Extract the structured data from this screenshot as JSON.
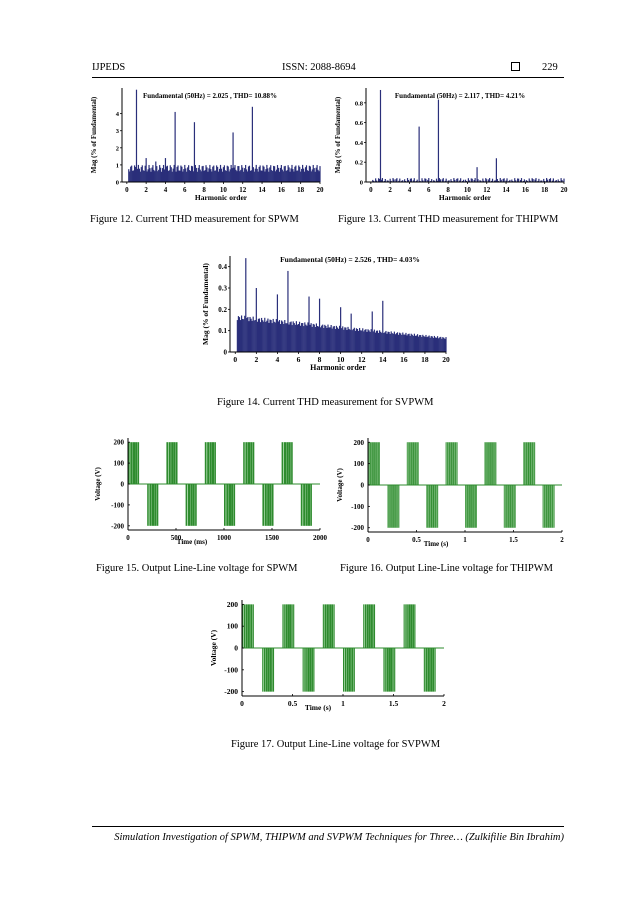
{
  "header": {
    "journal": "IJPEDS",
    "issn": "ISSN: 2088-8694",
    "page": "229"
  },
  "footer": {
    "running_title": "Simulation Investigation of SPWM, THIPWM and SVPWM Techniques for Three… (Zulkifilie Bin Ibrahim)"
  },
  "captions": {
    "fig12": "Figure 12. Current THD measurement for SPWM",
    "fig13": "Figure 13. Current THD measurement for THIPWM",
    "fig14": "Figure 14. Current THD measurement for SVPWM",
    "fig15": "Figure 15. Output Line-Line voltage for SPWM",
    "fig16": "Figure 16. Output Line-Line voltage for THIPWM",
    "fig17": "Figure 17. Output Line-Line voltage for SVPWM"
  },
  "colors": {
    "bar": "#2a2f7a",
    "wave": "#2e8b2e",
    "wave_light": "#9fd89f"
  },
  "chart_data": [
    {
      "id": "fig12",
      "type": "bar",
      "title": "Fundamental (50Hz) = 2.025 , THD= 10.88%",
      "xlabel": "Harmonic order",
      "ylabel": "Mag (% of Fundamental)",
      "xlim": [
        -0.5,
        20
      ],
      "ylim": [
        0,
        5.5
      ],
      "x_ticks": [
        "0",
        "2",
        "4",
        "6",
        "8",
        "10",
        "12",
        "14",
        "16",
        "18",
        "20"
      ],
      "y_ticks": [
        "0",
        "1",
        "2",
        "3",
        "4"
      ],
      "baseline_range": [
        0.6,
        1.0
      ],
      "peaks": [
        [
          1,
          5.4
        ],
        [
          2,
          1.4
        ],
        [
          3,
          1.2
        ],
        [
          4,
          1.4
        ],
        [
          5,
          4.1
        ],
        [
          7,
          3.5
        ],
        [
          11,
          2.9
        ],
        [
          13,
          4.4
        ]
      ]
    },
    {
      "id": "fig13",
      "type": "bar",
      "title": "Fundamental (50Hz) = 2.117 , THD= 4.21%",
      "xlabel": "Harmonic order",
      "ylabel": "Mag (% of Fundamental)",
      "xlim": [
        -0.5,
        20
      ],
      "ylim": [
        0,
        0.95
      ],
      "x_ticks": [
        "0",
        "2",
        "4",
        "6",
        "8",
        "10",
        "12",
        "14",
        "16",
        "18",
        "20"
      ],
      "y_ticks": [
        "0",
        "0.2",
        "0.4",
        "0.6",
        "0.8"
      ],
      "baseline_range": [
        0.01,
        0.04
      ],
      "peaks": [
        [
          1,
          0.93
        ],
        [
          5,
          0.56
        ],
        [
          7,
          0.83
        ],
        [
          11,
          0.15
        ],
        [
          13,
          0.24
        ]
      ]
    },
    {
      "id": "fig14",
      "type": "bar",
      "title": "Fundamental (50Hz) = 2.526 , THD= 4.03%",
      "xlabel": "Harmonic order",
      "ylabel": "Mag (% of Fundamental)",
      "xlim": [
        -0.5,
        20
      ],
      "ylim": [
        0,
        0.45
      ],
      "x_ticks": [
        "0",
        "2",
        "4",
        "6",
        "8",
        "10",
        "12",
        "14",
        "16",
        "18",
        "20"
      ],
      "y_ticks": [
        "0",
        "0.1",
        "0.2",
        "0.3",
        "0.4"
      ],
      "baseline_start": 0.175,
      "baseline_end": 0.07,
      "peaks": [
        [
          1,
          0.44
        ],
        [
          2,
          0.3
        ],
        [
          4,
          0.27
        ],
        [
          5,
          0.38
        ],
        [
          7,
          0.26
        ],
        [
          8,
          0.25
        ],
        [
          10,
          0.21
        ],
        [
          11,
          0.18
        ],
        [
          13,
          0.19
        ],
        [
          14,
          0.24
        ]
      ]
    },
    {
      "id": "fig15",
      "type": "line",
      "xlabel": "Time (ms)",
      "ylabel": "Voltage (V)",
      "xlim": [
        0,
        2000
      ],
      "ylim": [
        -220,
        220
      ],
      "x_ticks": [
        {
          "v": 0,
          "t": "0"
        },
        {
          "v": 500,
          "t": "500"
        },
        {
          "v": 1000,
          "t": "1000"
        },
        {
          "v": 1500,
          "t": "1500"
        },
        {
          "v": 2000,
          "t": "2000"
        }
      ],
      "y_ticks": [
        {
          "v": 200,
          "t": "200"
        },
        {
          "v": 100,
          "t": "100"
        },
        {
          "v": 0,
          "t": "0"
        },
        {
          "v": -100,
          "t": "-100"
        },
        {
          "v": -200,
          "t": "-200"
        }
      ],
      "amplitude": 200,
      "fundamental_cycles": 5,
      "pulses_per_half": 5
    },
    {
      "id": "fig16",
      "type": "line",
      "xlabel": "Time (s)",
      "ylabel": "Voltage (V)",
      "xlim": [
        0,
        2
      ],
      "ylim": [
        -220,
        220
      ],
      "x_ticks": [
        {
          "v": 0,
          "t": "0"
        },
        {
          "v": 0.5,
          "t": "0.5"
        },
        {
          "v": 1,
          "t": "1"
        },
        {
          "v": 1.5,
          "t": "1.5"
        },
        {
          "v": 2,
          "t": "2"
        }
      ],
      "y_ticks": [
        {
          "v": 200,
          "t": "200"
        },
        {
          "v": 100,
          "t": "100"
        },
        {
          "v": 0,
          "t": "0"
        },
        {
          "v": -100,
          "t": "-100"
        },
        {
          "v": -200,
          "t": "-200"
        }
      ],
      "amplitude": 200,
      "fundamental_cycles": 5,
      "pulses_per_half": 18
    },
    {
      "id": "fig17",
      "type": "line",
      "xlabel": "Time (s)",
      "ylabel": "Voltage (V)",
      "xlim": [
        0,
        2
      ],
      "ylim": [
        -220,
        220
      ],
      "x_ticks": [
        {
          "v": 0,
          "t": "0"
        },
        {
          "v": 0.5,
          "t": "0.5"
        },
        {
          "v": 1,
          "t": "1"
        },
        {
          "v": 1.5,
          "t": "1.5"
        },
        {
          "v": 2,
          "t": "2"
        }
      ],
      "y_ticks": [
        {
          "v": 200,
          "t": "200"
        },
        {
          "v": 100,
          "t": "100"
        },
        {
          "v": 0,
          "t": "0"
        },
        {
          "v": -100,
          "t": "-100"
        },
        {
          "v": -200,
          "t": "-200"
        }
      ],
      "amplitude": 200,
      "fundamental_cycles": 5,
      "pulses_per_half": 7
    }
  ]
}
